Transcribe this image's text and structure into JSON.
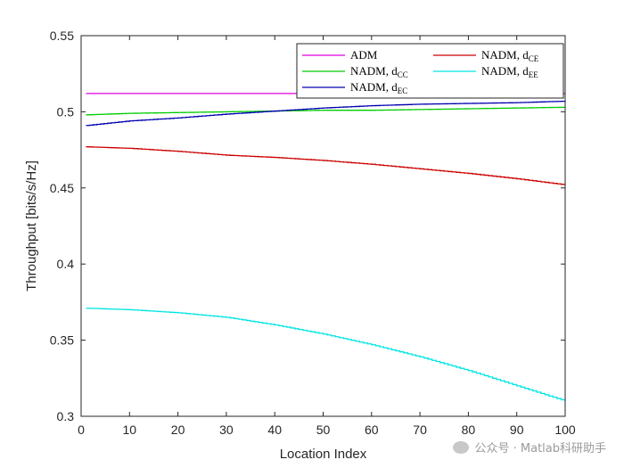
{
  "chart_data": {
    "type": "line",
    "xlabel": "Location Index",
    "ylabel": "Throughput [bits/s/Hz]",
    "xlim": [
      0,
      100
    ],
    "ylim": [
      0.3,
      0.55
    ],
    "xticks": [
      0,
      10,
      20,
      30,
      40,
      50,
      60,
      70,
      80,
      90,
      100
    ],
    "yticks": [
      0.3,
      0.35,
      0.4,
      0.45,
      0.5,
      0.55
    ],
    "grid": false,
    "legend_position": "top-right",
    "x": [
      1,
      10,
      20,
      30,
      40,
      50,
      60,
      70,
      80,
      90,
      100
    ],
    "series": [
      {
        "name": "ADM",
        "legend_main": "ADM",
        "legend_sub": "",
        "color": "#e000e0",
        "values": [
          0.512,
          0.512,
          0.512,
          0.512,
          0.512,
          0.512,
          0.512,
          0.512,
          0.512,
          0.512,
          0.512
        ]
      },
      {
        "name": "NADM, d_CC",
        "legend_main": "NADM, d",
        "legend_sub": "CC",
        "color": "#00cc00",
        "values": [
          0.498,
          0.499,
          0.4995,
          0.5,
          0.5005,
          0.501,
          0.501,
          0.5015,
          0.502,
          0.5025,
          0.503
        ]
      },
      {
        "name": "NADM, d_EC",
        "legend_main": "NADM, d",
        "legend_sub": "EC",
        "color": "#0000b0",
        "values": [
          0.491,
          0.494,
          0.496,
          0.4985,
          0.5005,
          0.5025,
          0.504,
          0.505,
          0.5055,
          0.506,
          0.507
        ]
      },
      {
        "name": "NADM, d_CE",
        "legend_main": "NADM, d",
        "legend_sub": "CE",
        "color": "#cc0000",
        "values": [
          0.477,
          0.476,
          0.474,
          0.4715,
          0.47,
          0.468,
          0.4655,
          0.4625,
          0.4595,
          0.456,
          0.452
        ]
      },
      {
        "name": "NADM, d_EE",
        "legend_main": "NADM, d",
        "legend_sub": "EE",
        "color": "#00e5e5",
        "values": [
          0.371,
          0.37,
          0.368,
          0.365,
          0.36,
          0.354,
          0.347,
          0.339,
          0.33,
          0.32,
          0.31
        ]
      }
    ]
  },
  "watermark": {
    "text": "公众号 · Matlab科研助手",
    "icon": "wechat-icon"
  }
}
